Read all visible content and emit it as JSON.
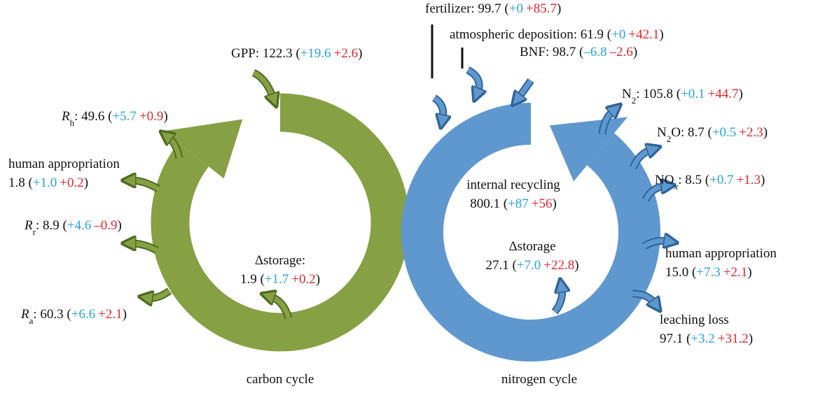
{
  "labels": [
    {
      "lines": [
        [
          {
            "text": "GPP: 122.3 ("
          },
          {
            "text": "+19.6",
            "role": "blue"
          },
          {
            "text": "+2.6",
            "role": "red"
          },
          {
            "text": ")"
          }
        ]
      ]
    },
    {
      "lines": [
        [
          {
            "text": "R",
            "role": "italic"
          },
          {
            "text": "h",
            "role": "sub"
          },
          {
            "text": ": 49.6 ("
          },
          {
            "text": "+5.7",
            "role": "blue"
          },
          {
            "text": "+0.9",
            "role": "red"
          },
          {
            "text": ")"
          }
        ]
      ]
    },
    {
      "lines": [
        [
          {
            "text": "human appropriation"
          }
        ],
        [
          {
            "text": "1.8 ("
          },
          {
            "text": "+1.0",
            "role": "blue"
          },
          {
            "text": "+0.2",
            "role": "red"
          },
          {
            "text": ")"
          }
        ]
      ]
    },
    {
      "lines": [
        [
          {
            "text": "R",
            "role": "italic"
          },
          {
            "text": "r",
            "role": "sub"
          },
          {
            "text": ": 8.9 ("
          },
          {
            "text": "+4.6",
            "role": "blue"
          },
          {
            "text": "–0.9",
            "role": "red"
          },
          {
            "text": ")"
          }
        ]
      ]
    },
    {
      "lines": [
        [
          {
            "text": "Δstorage:"
          }
        ],
        [
          {
            "text": "1.9 ("
          },
          {
            "text": "+1.7",
            "role": "blue"
          },
          {
            "text": "+0.2",
            "role": "red"
          },
          {
            "text": ")"
          }
        ]
      ]
    },
    {
      "lines": [
        [
          {
            "text": "R",
            "role": "italic"
          },
          {
            "text": "a",
            "role": "sub"
          },
          {
            "text": ": 60.3 ("
          },
          {
            "text": "+6.6",
            "role": "blue"
          },
          {
            "text": "+2.1",
            "role": "red"
          },
          {
            "text": ")"
          }
        ]
      ]
    },
    {
      "lines": [
        [
          {
            "text": "carbon cycle"
          }
        ]
      ]
    },
    {
      "lines": [
        [
          {
            "text": "fertilizer: 99.7 ("
          },
          {
            "text": "+0",
            "role": "blue"
          },
          {
            "text": "+85.7",
            "role": "red"
          },
          {
            "text": ")"
          }
        ]
      ]
    },
    {
      "lines": [
        [
          {
            "text": "atmospheric deposition: 61.9 ("
          },
          {
            "text": "+0",
            "role": "blue"
          },
          {
            "text": "+42.1",
            "role": "red"
          },
          {
            "text": ")"
          }
        ]
      ]
    },
    {
      "lines": [
        [
          {
            "text": "BNF: 98.7 ("
          },
          {
            "text": "–6.8",
            "role": "blue"
          },
          {
            "text": "–2.6",
            "role": "red"
          },
          {
            "text": ")"
          }
        ]
      ]
    },
    {
      "lines": [
        [
          {
            "text": "N"
          },
          {
            "text": "2",
            "role": "sub"
          },
          {
            "text": ": 105.8 ("
          },
          {
            "text": "+0.1",
            "role": "blue"
          },
          {
            "text": "+44.7",
            "role": "red"
          },
          {
            "text": ")"
          }
        ]
      ]
    },
    {
      "lines": [
        [
          {
            "text": "N"
          },
          {
            "text": "2",
            "role": "sub"
          },
          {
            "text": "O: 8.7 ("
          },
          {
            "text": "+0.5",
            "role": "blue"
          },
          {
            "text": "+2.3",
            "role": "red"
          },
          {
            "text": ")"
          }
        ]
      ]
    },
    {
      "lines": [
        [
          {
            "text": "NO"
          },
          {
            "text": "x",
            "role": "sub-italic"
          },
          {
            "text": ": 8.5 ("
          },
          {
            "text": "+0.7",
            "role": "blue"
          },
          {
            "text": "+1.3",
            "role": "red"
          },
          {
            "text": ")"
          }
        ]
      ]
    },
    {
      "lines": [
        [
          {
            "text": "internal recycling"
          }
        ],
        [
          {
            "text": "800.1 ("
          },
          {
            "text": "+87",
            "role": "blue"
          },
          {
            "text": "+56",
            "role": "red"
          },
          {
            "text": ")"
          }
        ]
      ]
    },
    {
      "lines": [
        [
          {
            "text": "Δstorage"
          }
        ],
        [
          {
            "text": "27.1 ("
          },
          {
            "text": "+7.0",
            "role": "blue"
          },
          {
            "text": "+22.8",
            "role": "red"
          },
          {
            "text": ")"
          }
        ]
      ]
    },
    {
      "lines": [
        [
          {
            "text": "human appropriation"
          }
        ],
        [
          {
            "text": "15.0 ("
          },
          {
            "text": "+7.3",
            "role": "blue"
          },
          {
            "text": "+2.1",
            "role": "red"
          },
          {
            "text": ")"
          }
        ]
      ]
    },
    {
      "lines": [
        [
          {
            "text": "leaching loss"
          }
        ],
        [
          {
            "text": "97.1 ("
          },
          {
            "text": "+3.2",
            "role": "blue"
          },
          {
            "text": "+31.2",
            "role": "red"
          },
          {
            "text": ")"
          }
        ]
      ]
    },
    {
      "lines": [
        [
          {
            "text": "nitrogen cycle"
          }
        ]
      ]
    }
  ],
  "colors": {
    "blue": "#27a3da",
    "red": "#e3262b",
    "carbon": "#86a043",
    "nitrogen": "#5f98cf"
  }
}
